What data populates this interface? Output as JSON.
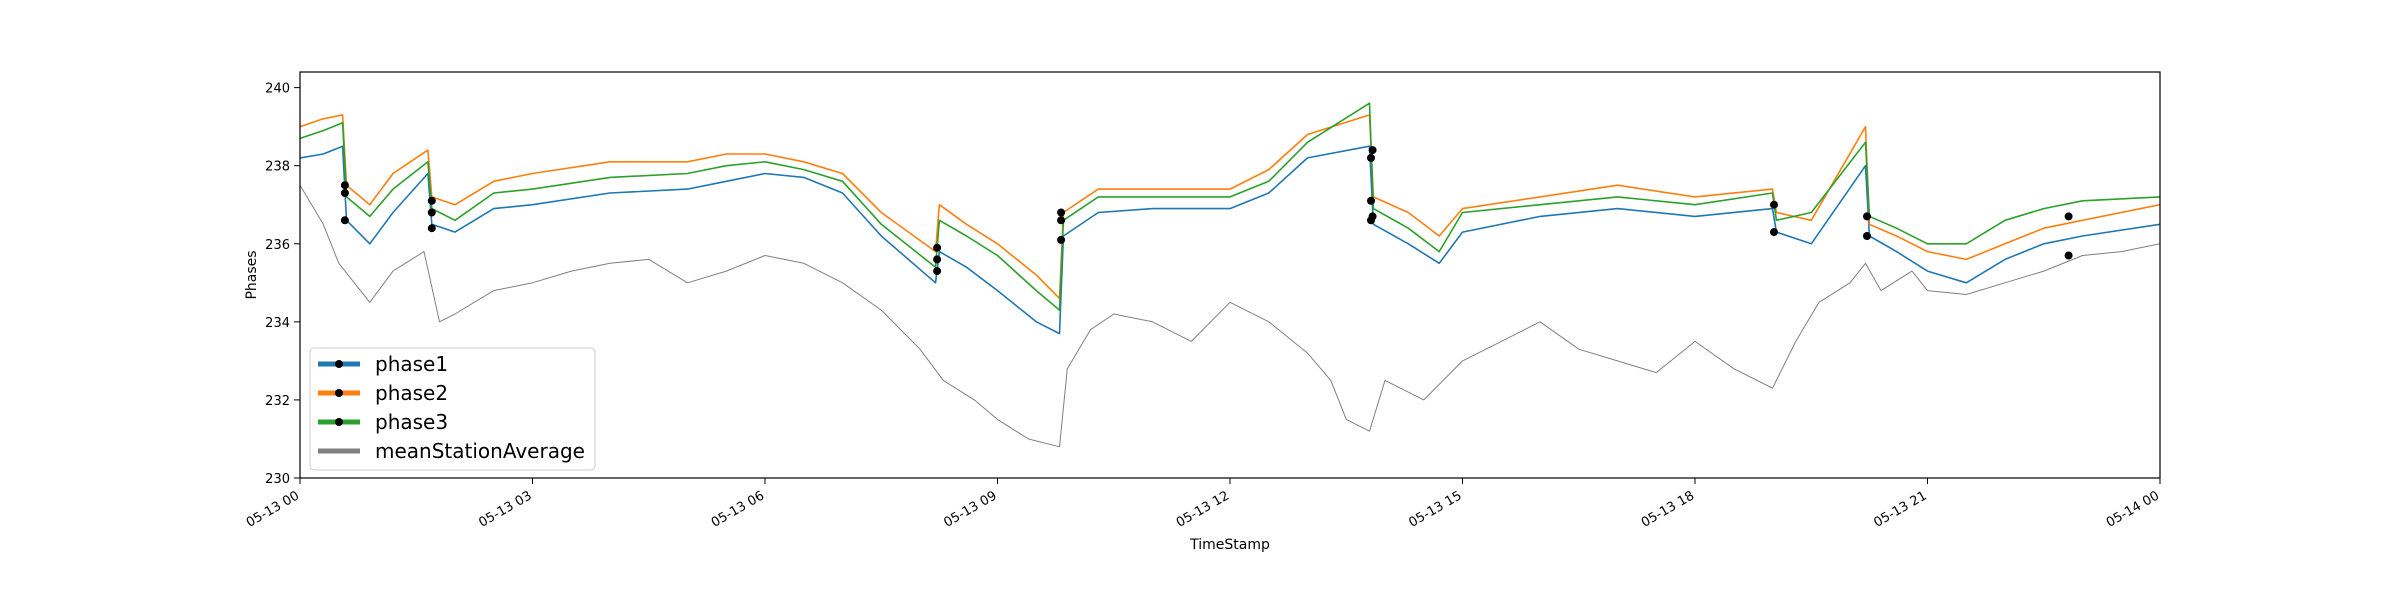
{
  "chart_data": {
    "type": "line",
    "xlabel": "TimeStamp",
    "ylabel": "Phases",
    "xlim": [
      0,
      24
    ],
    "ylim": [
      230,
      240.4
    ],
    "yticks": [
      230,
      232,
      234,
      236,
      238,
      240
    ],
    "xticks": [
      {
        "value": 0,
        "label": "05-13 00"
      },
      {
        "value": 3,
        "label": "05-13 03"
      },
      {
        "value": 6,
        "label": "05-13 06"
      },
      {
        "value": 9,
        "label": "05-13 09"
      },
      {
        "value": 12,
        "label": "05-13 12"
      },
      {
        "value": 15,
        "label": "05-13 15"
      },
      {
        "value": 18,
        "label": "05-13 18"
      },
      {
        "value": 21,
        "label": "05-13 21"
      },
      {
        "value": 24,
        "label": "05-14 00"
      }
    ],
    "legend_position": "lower-left",
    "series": [
      {
        "name": "phase1",
        "color": "#1f77b4",
        "x": [
          0,
          0.3,
          0.55,
          0.6,
          0.9,
          1.2,
          1.65,
          1.7,
          2.0,
          2.5,
          3.0,
          4.0,
          5.0,
          5.5,
          6.0,
          6.5,
          7.0,
          7.5,
          8.2,
          8.25,
          8.6,
          9.0,
          9.5,
          9.8,
          9.85,
          10.3,
          11.0,
          12.0,
          12.5,
          13.0,
          13.8,
          13.85,
          14.3,
          14.7,
          15.0,
          16.0,
          17.0,
          18.0,
          19.0,
          19.05,
          19.5,
          20.2,
          20.25,
          20.6,
          21.0,
          21.5,
          22.0,
          22.5,
          23.0,
          24.0
        ],
        "y": [
          238.2,
          238.3,
          238.5,
          236.6,
          236.0,
          236.8,
          237.8,
          236.5,
          236.3,
          236.9,
          237.0,
          237.3,
          237.4,
          237.6,
          237.8,
          237.7,
          237.3,
          236.2,
          235.0,
          235.8,
          235.4,
          234.8,
          234.0,
          233.7,
          236.2,
          236.8,
          236.9,
          236.9,
          237.3,
          238.2,
          238.5,
          236.5,
          236.0,
          235.5,
          236.3,
          236.7,
          236.9,
          236.7,
          236.9,
          236.3,
          236.0,
          238.0,
          236.2,
          235.8,
          235.3,
          235.0,
          235.6,
          236.0,
          236.2,
          236.5
        ]
      },
      {
        "name": "phase2",
        "color": "#ff7f0e",
        "x": [
          0,
          0.3,
          0.55,
          0.6,
          0.9,
          1.2,
          1.65,
          1.7,
          2.0,
          2.5,
          3.0,
          4.0,
          5.0,
          5.5,
          6.0,
          6.5,
          7.0,
          7.5,
          8.2,
          8.25,
          8.6,
          9.0,
          9.5,
          9.8,
          9.85,
          10.3,
          11.0,
          12.0,
          12.5,
          13.0,
          13.8,
          13.85,
          14.3,
          14.7,
          15.0,
          16.0,
          17.0,
          18.0,
          19.0,
          19.05,
          19.5,
          20.2,
          20.25,
          20.6,
          21.0,
          21.5,
          22.0,
          22.5,
          23.0,
          24.0
        ],
        "y": [
          239.0,
          239.2,
          239.3,
          237.5,
          237.0,
          237.8,
          238.4,
          237.2,
          237.0,
          237.6,
          237.8,
          238.1,
          238.1,
          238.3,
          238.3,
          238.1,
          237.8,
          236.8,
          235.8,
          237.0,
          236.5,
          236.0,
          235.2,
          234.6,
          236.8,
          237.4,
          237.4,
          237.4,
          237.9,
          238.8,
          239.3,
          237.2,
          236.8,
          236.2,
          236.9,
          237.2,
          237.5,
          237.2,
          237.4,
          236.8,
          236.6,
          239.0,
          236.5,
          236.2,
          235.8,
          235.6,
          236.0,
          236.4,
          236.6,
          237.0
        ]
      },
      {
        "name": "phase3",
        "color": "#2ca02c",
        "x": [
          0,
          0.3,
          0.55,
          0.6,
          0.9,
          1.2,
          1.65,
          1.7,
          2.0,
          2.5,
          3.0,
          4.0,
          5.0,
          5.5,
          6.0,
          6.5,
          7.0,
          7.5,
          8.2,
          8.25,
          8.6,
          9.0,
          9.5,
          9.8,
          9.85,
          10.3,
          11.0,
          12.0,
          12.5,
          13.0,
          13.8,
          13.85,
          14.3,
          14.7,
          15.0,
          16.0,
          17.0,
          18.0,
          19.0,
          19.05,
          19.5,
          20.2,
          20.25,
          20.6,
          21.0,
          21.5,
          22.0,
          22.5,
          23.0,
          24.0
        ],
        "y": [
          238.7,
          238.9,
          239.1,
          237.2,
          236.7,
          237.4,
          238.1,
          236.9,
          236.6,
          237.3,
          237.4,
          237.7,
          237.8,
          238.0,
          238.1,
          237.9,
          237.6,
          236.5,
          235.4,
          236.6,
          236.2,
          235.7,
          234.8,
          234.3,
          236.6,
          237.2,
          237.2,
          237.2,
          237.6,
          238.6,
          239.6,
          236.9,
          236.4,
          235.8,
          236.8,
          237.0,
          237.2,
          237.0,
          237.3,
          236.6,
          236.8,
          238.6,
          236.7,
          236.4,
          236.0,
          236.0,
          236.6,
          236.9,
          237.1,
          237.2
        ]
      },
      {
        "name": "meanStationAverage",
        "color": "#808080",
        "x": [
          0,
          0.3,
          0.5,
          0.9,
          1.2,
          1.6,
          1.8,
          2.0,
          2.5,
          3.0,
          3.5,
          4.0,
          4.5,
          5.0,
          5.5,
          6.0,
          6.5,
          7.0,
          7.5,
          8.0,
          8.3,
          8.7,
          9.0,
          9.4,
          9.8,
          9.9,
          10.2,
          10.5,
          11.0,
          11.5,
          12.0,
          12.5,
          13.0,
          13.3,
          13.5,
          13.8,
          14.0,
          14.5,
          15.0,
          15.5,
          16.0,
          16.5,
          17.0,
          17.5,
          18.0,
          18.5,
          19.0,
          19.3,
          19.6,
          20.0,
          20.2,
          20.4,
          20.8,
          21.0,
          21.5,
          22.0,
          22.5,
          23.0,
          23.5,
          24.0
        ],
        "y": [
          237.5,
          236.5,
          235.5,
          234.5,
          235.3,
          235.8,
          234.0,
          234.2,
          234.8,
          235.0,
          235.3,
          235.5,
          235.6,
          235.0,
          235.3,
          235.7,
          235.5,
          235.0,
          234.3,
          233.3,
          232.5,
          232.0,
          231.5,
          231.0,
          230.8,
          232.8,
          233.8,
          234.2,
          234.0,
          233.5,
          234.5,
          234.0,
          233.2,
          232.5,
          231.5,
          231.2,
          232.5,
          232.0,
          233.0,
          233.5,
          234.0,
          233.3,
          233.0,
          232.7,
          233.5,
          232.8,
          232.3,
          233.5,
          234.5,
          235.0,
          235.5,
          234.8,
          235.3,
          234.8,
          234.7,
          235.0,
          235.3,
          235.7,
          235.8,
          236.0
        ]
      }
    ],
    "markers": {
      "color": "#000000",
      "points": [
        {
          "series": "phase1",
          "x": 0.58,
          "y": 236.6
        },
        {
          "series": "phase2",
          "x": 0.58,
          "y": 237.5
        },
        {
          "series": "phase3",
          "x": 0.58,
          "y": 237.3
        },
        {
          "series": "phase1",
          "x": 1.7,
          "y": 236.4
        },
        {
          "series": "phase2",
          "x": 1.7,
          "y": 237.1
        },
        {
          "series": "phase3",
          "x": 1.7,
          "y": 236.8
        },
        {
          "series": "phase1",
          "x": 8.22,
          "y": 235.3
        },
        {
          "series": "phase2",
          "x": 8.22,
          "y": 235.9
        },
        {
          "series": "phase3",
          "x": 8.22,
          "y": 235.6
        },
        {
          "series": "phase1",
          "x": 9.82,
          "y": 236.1
        },
        {
          "series": "phase2",
          "x": 9.82,
          "y": 236.8
        },
        {
          "series": "phase3",
          "x": 9.82,
          "y": 236.6
        },
        {
          "series": "phase1",
          "x": 13.82,
          "y": 236.6
        },
        {
          "series": "phase2",
          "x": 13.82,
          "y": 237.1
        },
        {
          "series": "phase3",
          "x": 13.82,
          "y": 238.2
        },
        {
          "series": "phase2",
          "x": 13.84,
          "y": 238.4
        },
        {
          "series": "phase3",
          "x": 13.84,
          "y": 236.7
        },
        {
          "series": "phase1",
          "x": 19.02,
          "y": 236.3
        },
        {
          "series": "phase3",
          "x": 19.02,
          "y": 237.0
        },
        {
          "series": "phase2",
          "x": 20.22,
          "y": 236.2
        },
        {
          "series": "phase3",
          "x": 20.22,
          "y": 236.7
        },
        {
          "series": "phase1",
          "x": 22.82,
          "y": 235.7
        },
        {
          "series": "phase3",
          "x": 22.82,
          "y": 236.7
        }
      ]
    }
  }
}
